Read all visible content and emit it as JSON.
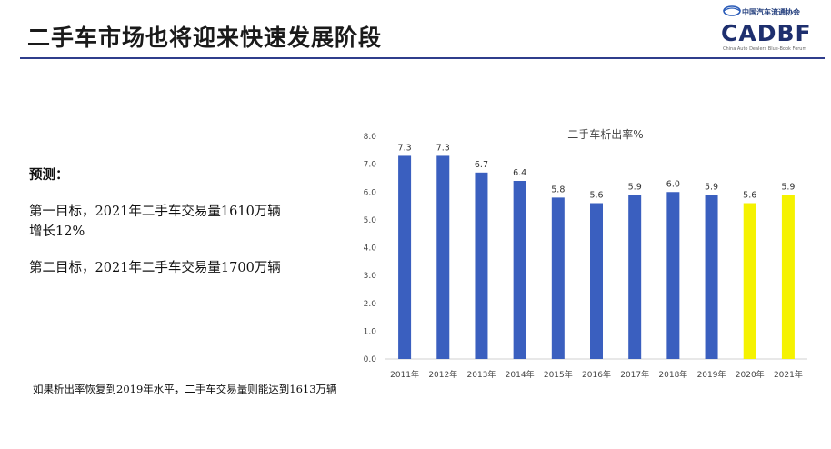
{
  "slide": {
    "title": "二手车市场也将迎来快速发展阶段"
  },
  "logo": {
    "org_name": "中国汽车流通协会",
    "brand": "CADBF",
    "subtitle": "China Auto Dealers Blue-Book Forum"
  },
  "forecast": {
    "heading": "预测：",
    "goal1_line1": "第一目标，2021年二手车交易量1610万辆",
    "goal1_line2": "增长12%",
    "goal2": "第二目标，2021年二手车交易量1700万辆"
  },
  "footnote": "如果析出率恢复到2019年水平，二手车交易量则能达到1613万辆",
  "colors": {
    "actual": "#3a5fbf",
    "forecast": "#f5f200",
    "title_rule": "#2f3d8c",
    "brand": "#1e2f6e"
  },
  "chart_data": {
    "type": "bar",
    "title": "二手车析出率%",
    "categories": [
      "2011年",
      "2012年",
      "2013年",
      "2014年",
      "2015年",
      "2016年",
      "2017年",
      "2018年",
      "2019年",
      "2020年",
      "2021年"
    ],
    "values": [
      7.3,
      7.3,
      6.7,
      6.4,
      5.8,
      5.6,
      5.9,
      6.0,
      5.9,
      5.6,
      5.9
    ],
    "value_labels": [
      "7.3",
      "7.3",
      "6.7",
      "6.4",
      "5.8",
      "5.6",
      "5.9",
      "6.0",
      "5.9",
      "5.6",
      "5.9"
    ],
    "highlighted": [
      false,
      false,
      false,
      false,
      false,
      false,
      false,
      false,
      false,
      true,
      true
    ],
    "ylim": [
      0,
      8
    ],
    "yticks": [
      "0.0",
      "1.0",
      "2.0",
      "3.0",
      "4.0",
      "5.0",
      "6.0",
      "7.0",
      "8.0"
    ],
    "grid": false,
    "xlabel": "",
    "ylabel": ""
  }
}
